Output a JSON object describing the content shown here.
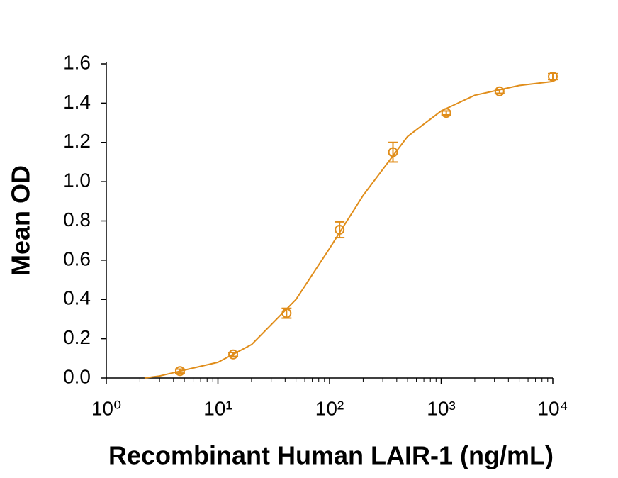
{
  "chart_data": {
    "type": "scatter",
    "x_label": "Recombinant Human LAIR-1 (ng/mL)",
    "y_label": "Mean OD",
    "xlog": true,
    "xlim": [
      1,
      10000
    ],
    "xticks": [
      {
        "value": 1,
        "label": "10⁰"
      },
      {
        "value": 10,
        "label": "10¹"
      },
      {
        "value": 100,
        "label": "10²"
      },
      {
        "value": 1000,
        "label": "10³"
      },
      {
        "value": 10000,
        "label": "10⁴"
      }
    ],
    "ylim": [
      0,
      1.6
    ],
    "yticks": [
      {
        "value": 0,
        "label": "0.0"
      },
      0.2,
      0.4,
      0.6,
      0.8,
      {
        "value": 1,
        "label": "1.0"
      },
      1.2,
      1.4,
      1.6
    ],
    "series": [
      {
        "type": "scatter",
        "color": "#E08D1A",
        "x": [
          4.57,
          13.7,
          41.2,
          123,
          370,
          1111,
          3333,
          10000
        ],
        "values": [
          0.035,
          0.12,
          0.33,
          0.755,
          1.15,
          1.35,
          1.46,
          1.535
        ],
        "errors": [
          0.01,
          0.01,
          0.025,
          0.04,
          0.05,
          0.01,
          0.01,
          0.015
        ]
      },
      {
        "type": "line",
        "color": "#E08D1A",
        "x": [
          2.2,
          3,
          5,
          10,
          20,
          50,
          100,
          200,
          500,
          1000,
          2000,
          5000,
          10000
        ],
        "values": [
          0,
          0.01,
          0.04,
          0.08,
          0.17,
          0.4,
          0.66,
          0.93,
          1.23,
          1.36,
          1.44,
          1.49,
          1.51
        ]
      }
    ]
  }
}
